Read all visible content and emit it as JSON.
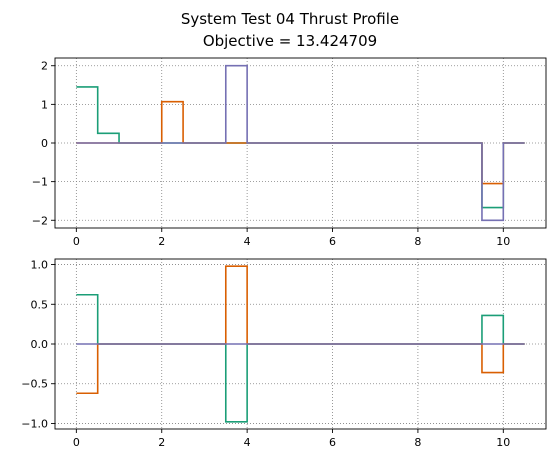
{
  "title_line1": "System Test 04 Thrust Profile",
  "title_line2": "Objective = 13.424709",
  "colors": {
    "series1": "#1b9e77",
    "series2": "#d95f02",
    "series3": "#7570b3",
    "grid": "#808080"
  },
  "chart_data": [
    {
      "type": "line",
      "drawstyle": "steps",
      "grid": true,
      "xlim": [
        -0.5,
        11.0
      ],
      "ylim": [
        -2.2,
        2.2
      ],
      "xticks": [
        0,
        2,
        4,
        6,
        8,
        10
      ],
      "yticks": [
        -2,
        -1,
        0,
        1,
        2
      ],
      "x": [
        0,
        0.5,
        1.0,
        1.5,
        2.0,
        2.5,
        3.0,
        3.5,
        4.0,
        4.5,
        5.0,
        5.5,
        6.0,
        6.5,
        7.0,
        7.5,
        8.0,
        8.5,
        9.0,
        9.5,
        10.0,
        10.5
      ],
      "series": [
        {
          "color": "#1b9e77",
          "values": [
            1.45,
            0.25,
            0,
            0,
            0,
            0,
            0,
            0,
            0,
            0,
            0,
            0,
            0,
            0,
            0,
            0,
            0,
            0,
            0,
            -1.67,
            0,
            0
          ]
        },
        {
          "color": "#d95f02",
          "values": [
            0,
            0,
            0,
            0,
            1.07,
            0,
            0,
            0,
            0,
            0,
            0,
            0,
            0,
            0,
            0,
            0,
            0,
            0,
            0,
            -1.05,
            0,
            0
          ]
        },
        {
          "color": "#7570b3",
          "values": [
            0,
            0,
            0,
            0,
            0,
            0,
            0,
            2.0,
            0,
            0,
            0,
            0,
            0,
            0,
            0,
            0,
            0,
            0,
            0,
            -2.0,
            0,
            0
          ]
        }
      ]
    },
    {
      "type": "line",
      "drawstyle": "steps",
      "grid": true,
      "xlim": [
        -0.5,
        11.0
      ],
      "ylim": [
        -1.07,
        1.07
      ],
      "xticks": [
        0,
        2,
        4,
        6,
        8,
        10
      ],
      "yticks": [
        -1.0,
        -0.5,
        0.0,
        0.5,
        1.0
      ],
      "x": [
        0,
        0.5,
        1.0,
        1.5,
        2.0,
        2.5,
        3.0,
        3.5,
        4.0,
        4.5,
        5.0,
        5.5,
        6.0,
        6.5,
        7.0,
        7.5,
        8.0,
        8.5,
        9.0,
        9.5,
        10.0,
        10.5
      ],
      "series": [
        {
          "color": "#1b9e77",
          "values": [
            0.62,
            0,
            0,
            0,
            0,
            0,
            0,
            -0.98,
            0,
            0,
            0,
            0,
            0,
            0,
            0,
            0,
            0,
            0,
            0,
            0.36,
            0,
            0
          ]
        },
        {
          "color": "#d95f02",
          "values": [
            -0.62,
            0,
            0,
            0,
            0,
            0,
            0,
            0.98,
            0,
            0,
            0,
            0,
            0,
            0,
            0,
            0,
            0,
            0,
            0,
            -0.36,
            0,
            0
          ]
        },
        {
          "color": "#7570b3",
          "values": [
            0,
            0,
            0,
            0,
            0,
            0,
            0,
            0,
            0,
            0,
            0,
            0,
            0,
            0,
            0,
            0,
            0,
            0,
            0,
            0,
            0,
            0
          ]
        }
      ]
    }
  ]
}
